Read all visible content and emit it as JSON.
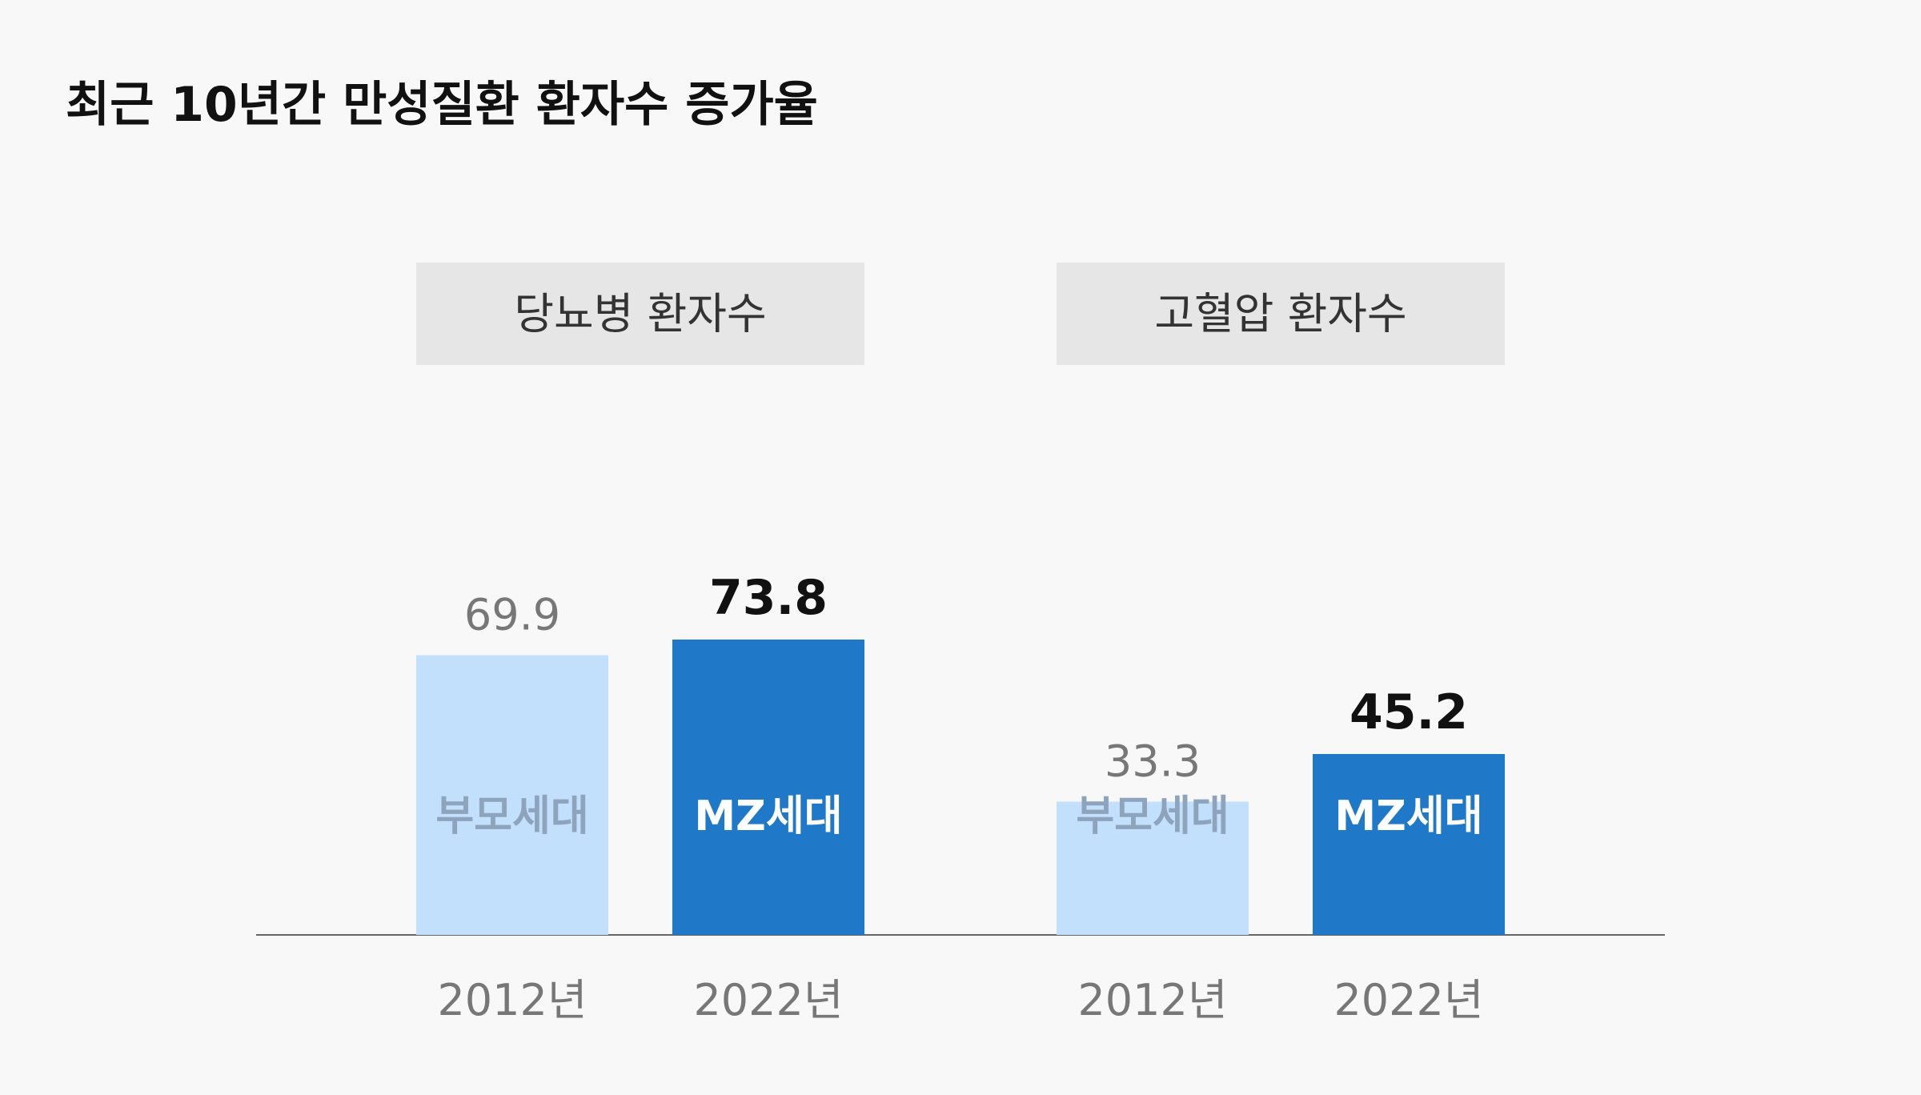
{
  "chart_data": {
    "type": "bar",
    "title": "최근 10년간 만성질환 환자수 증가율",
    "ylim": [
      0,
      80
    ],
    "grid": false,
    "colors": {
      "parent": "#c2e0fc",
      "mz": "#1f78c8",
      "parent_label": "#8ea4bd",
      "mz_label": "#ffffff"
    },
    "groups": [
      {
        "name": "당뇨병 환자수",
        "bars": [
          {
            "year": "2012년",
            "series": "부모세대",
            "value": 69.9,
            "highlight": false
          },
          {
            "year": "2022년",
            "series": "MZ세대",
            "value": 73.8,
            "highlight": true
          }
        ]
      },
      {
        "name": "고혈압 환자수",
        "bars": [
          {
            "year": "2012년",
            "series": "부모세대",
            "value": 33.3,
            "highlight": false
          },
          {
            "year": "2022년",
            "series": "MZ세대",
            "value": 45.2,
            "highlight": true
          }
        ]
      }
    ]
  }
}
